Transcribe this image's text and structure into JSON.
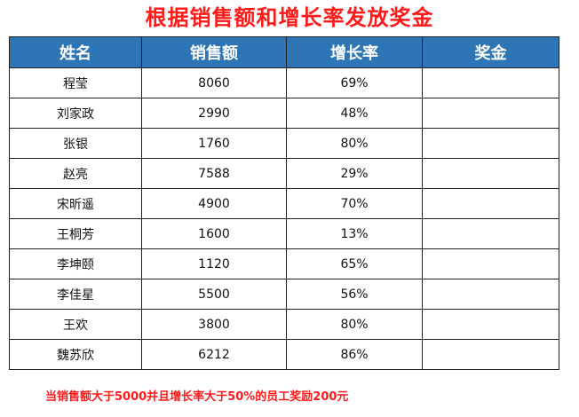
{
  "title": "根据销售额和增长率发放奖金",
  "table": {
    "headers": [
      "姓名",
      "销售额",
      "增长率",
      "奖金"
    ],
    "rows": [
      {
        "name": "程莹",
        "sales": "8060",
        "growth": "69%",
        "bonus": ""
      },
      {
        "name": "刘家政",
        "sales": "2990",
        "growth": "48%",
        "bonus": ""
      },
      {
        "name": "张银",
        "sales": "1760",
        "growth": "80%",
        "bonus": ""
      },
      {
        "name": "赵亮",
        "sales": "7588",
        "growth": "29%",
        "bonus": ""
      },
      {
        "name": "宋昕遥",
        "sales": "4900",
        "growth": "70%",
        "bonus": ""
      },
      {
        "name": "王桐芳",
        "sales": "1600",
        "growth": "13%",
        "bonus": ""
      },
      {
        "name": "李坤颐",
        "sales": "1120",
        "growth": "65%",
        "bonus": ""
      },
      {
        "name": "李佳星",
        "sales": "5500",
        "growth": "56%",
        "bonus": ""
      },
      {
        "name": "王欢",
        "sales": "3800",
        "growth": "80%",
        "bonus": ""
      },
      {
        "name": "魏苏欣",
        "sales": "6212",
        "growth": "86%",
        "bonus": ""
      }
    ]
  },
  "footnote": "当销售额大于5000并且增长率大于50%的员工奖励200元",
  "colors": {
    "title": "#ff1a1a",
    "header_bg": "#2e75b6",
    "header_text": "#ffffff",
    "footnote": "#ff1a1a"
  }
}
